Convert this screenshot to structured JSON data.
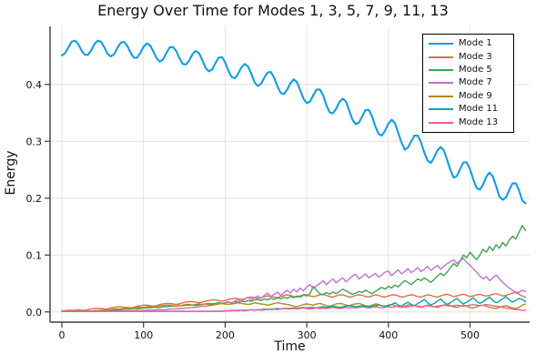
{
  "figure": {
    "background": "#ffffff",
    "axis_color": "#3c3c3c",
    "grid_color": "#e2e2e2",
    "text_color": "#111111"
  },
  "chart_data": {
    "type": "line",
    "title": "Energy Over Time for Modes 1, 3, 5, 7, 9, 11, 13",
    "xlabel": "Time",
    "ylabel": "Energy",
    "xlim": [
      -14.5,
      573
    ],
    "ylim": [
      -0.018,
      0.502
    ],
    "grid": true,
    "legend_position": "top-right",
    "xticks": {
      "values": [
        0,
        100,
        200,
        300,
        400,
        500
      ],
      "labels": [
        "0",
        "100",
        "200",
        "300",
        "400",
        "500"
      ]
    },
    "yticks": {
      "values": [
        0.0,
        0.1,
        0.2,
        0.3,
        0.4
      ],
      "labels": [
        "0.0",
        "0.1",
        "0.2",
        "0.3",
        "0.4"
      ]
    },
    "x_sampling": {
      "start": 0,
      "step": 4,
      "count": 143
    },
    "series": [
      {
        "name": "Mode 1",
        "color": "#009AF9",
        "width": 2,
        "values": [
          0.451,
          0.455,
          0.465,
          0.475,
          0.477,
          0.471,
          0.46,
          0.452,
          0.452,
          0.46,
          0.471,
          0.477,
          0.475,
          0.465,
          0.454,
          0.449,
          0.453,
          0.464,
          0.473,
          0.475,
          0.468,
          0.456,
          0.447,
          0.447,
          0.455,
          0.466,
          0.472,
          0.469,
          0.458,
          0.446,
          0.44,
          0.444,
          0.455,
          0.465,
          0.466,
          0.459,
          0.446,
          0.436,
          0.435,
          0.442,
          0.453,
          0.459,
          0.455,
          0.443,
          0.429,
          0.423,
          0.426,
          0.437,
          0.447,
          0.448,
          0.439,
          0.424,
          0.413,
          0.411,
          0.419,
          0.43,
          0.436,
          0.432,
          0.419,
          0.404,
          0.397,
          0.401,
          0.412,
          0.421,
          0.422,
          0.412,
          0.397,
          0.385,
          0.383,
          0.391,
          0.402,
          0.409,
          0.404,
          0.39,
          0.375,
          0.367,
          0.37,
          0.381,
          0.391,
          0.391,
          0.381,
          0.364,
          0.351,
          0.349,
          0.357,
          0.369,
          0.375,
          0.37,
          0.354,
          0.338,
          0.33,
          0.333,
          0.344,
          0.355,
          0.355,
          0.344,
          0.326,
          0.313,
          0.31,
          0.319,
          0.331,
          0.338,
          0.332,
          0.315,
          0.298,
          0.285,
          0.289,
          0.3,
          0.31,
          0.31,
          0.298,
          0.28,
          0.266,
          0.262,
          0.271,
          0.284,
          0.29,
          0.284,
          0.267,
          0.249,
          0.236,
          0.239,
          0.252,
          0.263,
          0.263,
          0.251,
          0.233,
          0.218,
          0.215,
          0.224,
          0.238,
          0.245,
          0.238,
          0.221,
          0.203,
          0.197,
          0.201,
          0.214,
          0.226,
          0.226,
          0.214,
          0.196,
          0.191
        ]
      },
      {
        "name": "Mode 3",
        "color": "#E26E46",
        "width": 1.4,
        "values": [
          0.002,
          0.002,
          0.003,
          0.003,
          0.003,
          0.004,
          0.003,
          0.003,
          0.004,
          0.005,
          0.006,
          0.006,
          0.006,
          0.005,
          0.005,
          0.007,
          0.008,
          0.009,
          0.009,
          0.008,
          0.008,
          0.007,
          0.008,
          0.01,
          0.011,
          0.012,
          0.012,
          0.011,
          0.01,
          0.011,
          0.013,
          0.014,
          0.015,
          0.015,
          0.014,
          0.013,
          0.014,
          0.016,
          0.017,
          0.018,
          0.018,
          0.017,
          0.016,
          0.017,
          0.019,
          0.02,
          0.021,
          0.021,
          0.02,
          0.019,
          0.02,
          0.022,
          0.023,
          0.024,
          0.023,
          0.022,
          0.023,
          0.025,
          0.026,
          0.025,
          0.024,
          0.025,
          0.027,
          0.028,
          0.027,
          0.026,
          0.025,
          0.027,
          0.029,
          0.03,
          0.029,
          0.027,
          0.026,
          0.028,
          0.03,
          0.03,
          0.028,
          0.027,
          0.028,
          0.03,
          0.031,
          0.029,
          0.027,
          0.026,
          0.028,
          0.03,
          0.03,
          0.028,
          0.026,
          0.027,
          0.029,
          0.03,
          0.029,
          0.027,
          0.026,
          0.028,
          0.03,
          0.029,
          0.027,
          0.026,
          0.028,
          0.03,
          0.03,
          0.028,
          0.026,
          0.027,
          0.029,
          0.03,
          0.029,
          0.027,
          0.026,
          0.028,
          0.03,
          0.029,
          0.027,
          0.026,
          0.028,
          0.03,
          0.031,
          0.029,
          0.027,
          0.028,
          0.03,
          0.031,
          0.029,
          0.027,
          0.028,
          0.03,
          0.031,
          0.029,
          0.028,
          0.029,
          0.031,
          0.032,
          0.03,
          0.028,
          0.029,
          0.031,
          0.033,
          0.034,
          0.031,
          0.028,
          0.026
        ]
      },
      {
        "name": "Mode 5",
        "color": "#3DA44E",
        "width": 1.4,
        "values": [
          0.001,
          0.001,
          0.001,
          0.001,
          0.001,
          0.001,
          0.001,
          0.001,
          0.001,
          0.001,
          0.002,
          0.002,
          0.002,
          0.003,
          0.003,
          0.003,
          0.004,
          0.004,
          0.004,
          0.005,
          0.005,
          0.005,
          0.006,
          0.006,
          0.006,
          0.007,
          0.007,
          0.007,
          0.008,
          0.008,
          0.008,
          0.009,
          0.009,
          0.01,
          0.01,
          0.01,
          0.011,
          0.011,
          0.012,
          0.012,
          0.012,
          0.013,
          0.014,
          0.013,
          0.014,
          0.015,
          0.014,
          0.015,
          0.016,
          0.015,
          0.016,
          0.017,
          0.016,
          0.018,
          0.017,
          0.019,
          0.018,
          0.02,
          0.019,
          0.021,
          0.022,
          0.02,
          0.023,
          0.021,
          0.024,
          0.022,
          0.025,
          0.023,
          0.026,
          0.024,
          0.027,
          0.025,
          0.028,
          0.026,
          0.03,
          0.028,
          0.032,
          0.045,
          0.038,
          0.032,
          0.03,
          0.034,
          0.031,
          0.035,
          0.032,
          0.036,
          0.04,
          0.037,
          0.034,
          0.031,
          0.033,
          0.036,
          0.034,
          0.038,
          0.035,
          0.032,
          0.036,
          0.04,
          0.043,
          0.04,
          0.045,
          0.042,
          0.047,
          0.044,
          0.05,
          0.055,
          0.052,
          0.048,
          0.053,
          0.058,
          0.055,
          0.06,
          0.056,
          0.052,
          0.057,
          0.063,
          0.068,
          0.064,
          0.07,
          0.078,
          0.085,
          0.08,
          0.09,
          0.1,
          0.095,
          0.105,
          0.098,
          0.092,
          0.1,
          0.11,
          0.105,
          0.115,
          0.108,
          0.118,
          0.112,
          0.122,
          0.116,
          0.126,
          0.133,
          0.128,
          0.14,
          0.152,
          0.143
        ]
      },
      {
        "name": "Mode 7",
        "color": "#C271D2",
        "width": 1.4,
        "values": [
          0.001,
          0.001,
          0.001,
          0.001,
          0.001,
          0.001,
          0.001,
          0.001,
          0.001,
          0.001,
          0.001,
          0.001,
          0.001,
          0.001,
          0.002,
          0.001,
          0.002,
          0.001,
          0.002,
          0.002,
          0.002,
          0.002,
          0.002,
          0.003,
          0.002,
          0.003,
          0.003,
          0.003,
          0.003,
          0.004,
          0.004,
          0.004,
          0.004,
          0.005,
          0.005,
          0.005,
          0.006,
          0.006,
          0.007,
          0.007,
          0.008,
          0.008,
          0.009,
          0.01,
          0.01,
          0.011,
          0.012,
          0.013,
          0.014,
          0.015,
          0.016,
          0.018,
          0.015,
          0.019,
          0.022,
          0.018,
          0.023,
          0.026,
          0.021,
          0.025,
          0.028,
          0.024,
          0.029,
          0.033,
          0.027,
          0.031,
          0.035,
          0.029,
          0.034,
          0.038,
          0.033,
          0.04,
          0.035,
          0.042,
          0.037,
          0.044,
          0.048,
          0.041,
          0.046,
          0.05,
          0.055,
          0.048,
          0.053,
          0.058,
          0.051,
          0.056,
          0.06,
          0.053,
          0.058,
          0.063,
          0.066,
          0.058,
          0.062,
          0.067,
          0.06,
          0.064,
          0.068,
          0.061,
          0.065,
          0.07,
          0.072,
          0.064,
          0.069,
          0.074,
          0.067,
          0.071,
          0.076,
          0.069,
          0.073,
          0.078,
          0.071,
          0.075,
          0.08,
          0.073,
          0.077,
          0.082,
          0.075,
          0.08,
          0.085,
          0.088,
          0.092,
          0.085,
          0.09,
          0.094,
          0.087,
          0.082,
          0.076,
          0.07,
          0.063,
          0.058,
          0.062,
          0.055,
          0.06,
          0.065,
          0.058,
          0.052,
          0.047,
          0.042,
          0.038,
          0.035,
          0.034,
          0.038,
          0.036
        ]
      },
      {
        "name": "Mode 9",
        "color": "#AC8E18",
        "width": 1.4,
        "values": [
          0.001,
          0.001,
          0.001,
          0.001,
          0.001,
          0.001,
          0.001,
          0.001,
          0.001,
          0.001,
          0.002,
          0.002,
          0.003,
          0.003,
          0.004,
          0.004,
          0.005,
          0.005,
          0.005,
          0.006,
          0.006,
          0.007,
          0.007,
          0.008,
          0.008,
          0.008,
          0.009,
          0.009,
          0.01,
          0.01,
          0.011,
          0.011,
          0.012,
          0.012,
          0.011,
          0.01,
          0.011,
          0.012,
          0.013,
          0.013,
          0.012,
          0.011,
          0.012,
          0.013,
          0.014,
          0.013,
          0.012,
          0.013,
          0.014,
          0.015,
          0.014,
          0.013,
          0.014,
          0.015,
          0.016,
          0.015,
          0.014,
          0.013,
          0.014,
          0.016,
          0.015,
          0.014,
          0.013,
          0.012,
          0.013,
          0.015,
          0.016,
          0.015,
          0.014,
          0.013,
          0.012,
          0.01,
          0.009,
          0.011,
          0.013,
          0.014,
          0.013,
          0.012,
          0.014,
          0.015,
          0.013,
          0.011,
          0.01,
          0.012,
          0.014,
          0.015,
          0.014,
          0.012,
          0.011,
          0.013,
          0.014,
          0.015,
          0.013,
          0.011,
          0.01,
          0.012,
          0.014,
          0.013,
          0.011,
          0.01,
          0.012,
          0.013,
          0.011,
          0.009,
          0.008,
          0.01,
          0.012,
          0.013,
          0.011,
          0.009,
          0.008,
          0.01,
          0.012,
          0.011,
          0.009,
          0.008,
          0.01,
          0.012,
          0.013,
          0.011,
          0.009,
          0.008,
          0.01,
          0.012,
          0.01,
          0.008,
          0.007,
          0.009,
          0.011,
          0.012,
          0.01,
          0.008,
          0.007,
          0.006,
          0.008,
          0.01,
          0.011,
          0.009,
          0.007,
          0.006,
          0.008,
          0.012,
          0.014
        ]
      },
      {
        "name": "Mode 11",
        "color": "#00A9AD",
        "width": 1.4,
        "values": [
          0.001,
          0.001,
          0.001,
          0.001,
          0.001,
          0.001,
          0.001,
          0.001,
          0.001,
          0.001,
          0.001,
          0.001,
          0.001,
          0.001,
          0.001,
          0.001,
          0.001,
          0.001,
          0.001,
          0.001,
          0.001,
          0.001,
          0.001,
          0.001,
          0.001,
          0.001,
          0.001,
          0.001,
          0.001,
          0.001,
          0.001,
          0.001,
          0.001,
          0.001,
          0.001,
          0.001,
          0.001,
          0.001,
          0.001,
          0.001,
          0.001,
          0.001,
          0.001,
          0.001,
          0.001,
          0.001,
          0.001,
          0.001,
          0.001,
          0.001,
          0.002,
          0.002,
          0.002,
          0.003,
          0.002,
          0.003,
          0.003,
          0.003,
          0.004,
          0.003,
          0.004,
          0.004,
          0.005,
          0.004,
          0.005,
          0.005,
          0.006,
          0.005,
          0.006,
          0.006,
          0.006,
          0.007,
          0.006,
          0.007,
          0.008,
          0.007,
          0.008,
          0.008,
          0.007,
          0.008,
          0.009,
          0.008,
          0.009,
          0.01,
          0.009,
          0.008,
          0.009,
          0.01,
          0.011,
          0.01,
          0.009,
          0.01,
          0.011,
          0.01,
          0.009,
          0.01,
          0.011,
          0.012,
          0.011,
          0.01,
          0.011,
          0.013,
          0.016,
          0.012,
          0.01,
          0.014,
          0.017,
          0.013,
          0.011,
          0.015,
          0.018,
          0.022,
          0.016,
          0.012,
          0.015,
          0.019,
          0.023,
          0.017,
          0.013,
          0.016,
          0.02,
          0.024,
          0.018,
          0.014,
          0.017,
          0.021,
          0.025,
          0.019,
          0.015,
          0.018,
          0.022,
          0.026,
          0.02,
          0.016,
          0.019,
          0.023,
          0.027,
          0.021,
          0.017,
          0.02,
          0.024,
          0.022,
          0.018
        ]
      },
      {
        "name": "Mode 13",
        "color": "#EF5F94",
        "width": 1.4,
        "values": [
          0.001,
          0.001,
          0.001,
          0.001,
          0.001,
          0.001,
          0.001,
          0.001,
          0.001,
          0.001,
          0.001,
          0.001,
          0.001,
          0.001,
          0.001,
          0.001,
          0.001,
          0.001,
          0.001,
          0.001,
          0.001,
          0.001,
          0.001,
          0.001,
          0.001,
          0.001,
          0.001,
          0.001,
          0.001,
          0.001,
          0.001,
          0.001,
          0.001,
          0.001,
          0.001,
          0.001,
          0.001,
          0.001,
          0.001,
          0.001,
          0.001,
          0.001,
          0.001,
          0.001,
          0.001,
          0.001,
          0.001,
          0.001,
          0.001,
          0.001,
          0.002,
          0.002,
          0.003,
          0.002,
          0.003,
          0.003,
          0.002,
          0.003,
          0.004,
          0.003,
          0.004,
          0.003,
          0.004,
          0.005,
          0.004,
          0.005,
          0.004,
          0.005,
          0.006,
          0.005,
          0.005,
          0.006,
          0.005,
          0.006,
          0.007,
          0.006,
          0.005,
          0.006,
          0.007,
          0.006,
          0.007,
          0.006,
          0.007,
          0.008,
          0.007,
          0.006,
          0.007,
          0.008,
          0.007,
          0.008,
          0.007,
          0.008,
          0.009,
          0.008,
          0.007,
          0.008,
          0.009,
          0.008,
          0.007,
          0.008,
          0.009,
          0.008,
          0.009,
          0.01,
          0.009,
          0.008,
          0.009,
          0.01,
          0.011,
          0.01,
          0.009,
          0.01,
          0.011,
          0.01,
          0.009,
          0.01,
          0.011,
          0.012,
          0.011,
          0.01,
          0.011,
          0.012,
          0.011,
          0.01,
          0.011,
          0.012,
          0.013,
          0.012,
          0.011,
          0.012,
          0.013,
          0.012,
          0.011,
          0.01,
          0.009,
          0.008,
          0.007,
          0.006,
          0.005,
          0.004,
          0.004,
          0.003,
          0.003
        ]
      }
    ]
  }
}
